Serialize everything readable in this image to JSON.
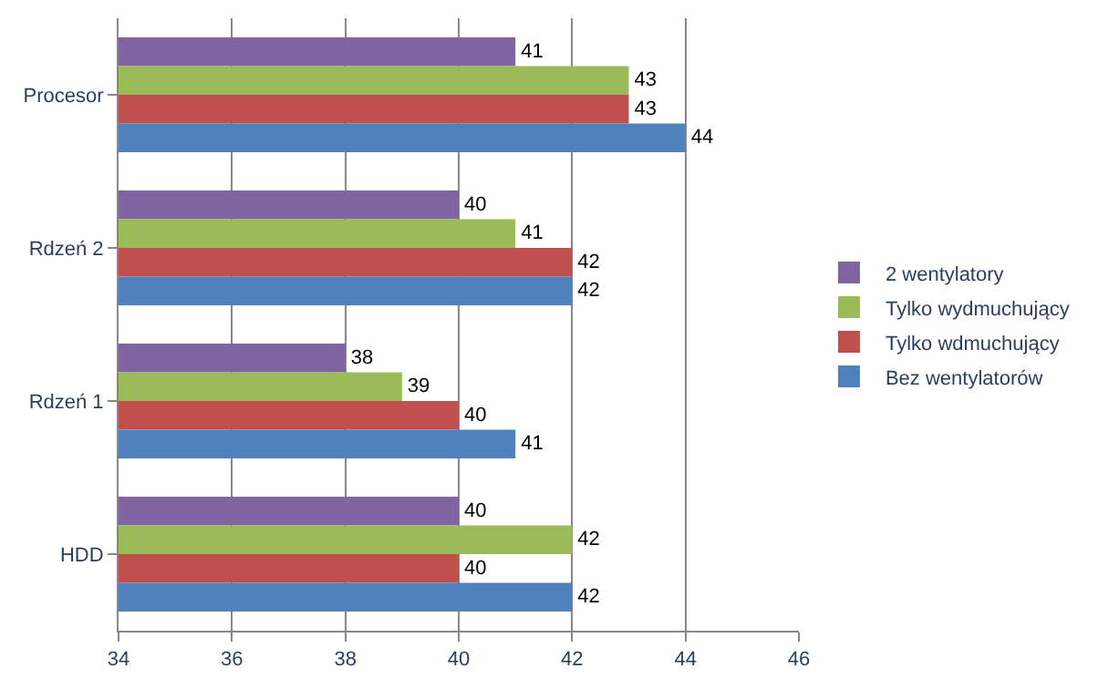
{
  "chart_data": {
    "type": "bar",
    "orientation": "horizontal",
    "categories": [
      "Procesor",
      "Rdzeń 2",
      "Rdzeń 1",
      "HDD"
    ],
    "series": [
      {
        "name": "2 wentylatory",
        "color": "#8064a2",
        "values": [
          41,
          40,
          38,
          40
        ]
      },
      {
        "name": "Tylko wydmuchujący",
        "color": "#9bbb59",
        "values": [
          43,
          41,
          39,
          42
        ]
      },
      {
        "name": "Tylko wdmuchujący",
        "color": "#c0504d",
        "values": [
          43,
          42,
          40,
          40
        ]
      },
      {
        "name": "Bez wentylatorów",
        "color": "#4f81bd",
        "values": [
          44,
          42,
          41,
          42
        ]
      }
    ],
    "xlim": [
      34,
      46
    ],
    "xticks": [
      34,
      36,
      38,
      40,
      42,
      44,
      46
    ],
    "grid": "x",
    "legend": "right",
    "data_labels": true
  }
}
